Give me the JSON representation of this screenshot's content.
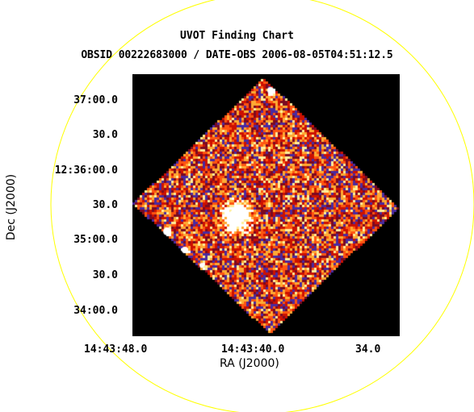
{
  "title": "UVOT Finding Chart",
  "subtitle": "OBSID 00222683000 / DATE-OBS 2006-08-05T04:51:12.5",
  "x_axis": {
    "label": "RA (J2000)",
    "ticks": [
      "14:43:48.0",
      "14:43:40.0",
      "34.0"
    ]
  },
  "y_axis": {
    "label": "Dec (J2000)",
    "ticks": [
      "37:00.0",
      "30.0",
      "12:36:00.0",
      "30.0",
      "35:00.0",
      "30.0",
      "34:00.0"
    ]
  },
  "overlay": {
    "circle_color": "#ffff00"
  },
  "colors": {
    "background": "#000000",
    "noise_high": "#ffffcc",
    "noise_mid": "#ff6600",
    "noise_low": "#aa0000",
    "noise_blue": "#4a2aa0"
  }
}
